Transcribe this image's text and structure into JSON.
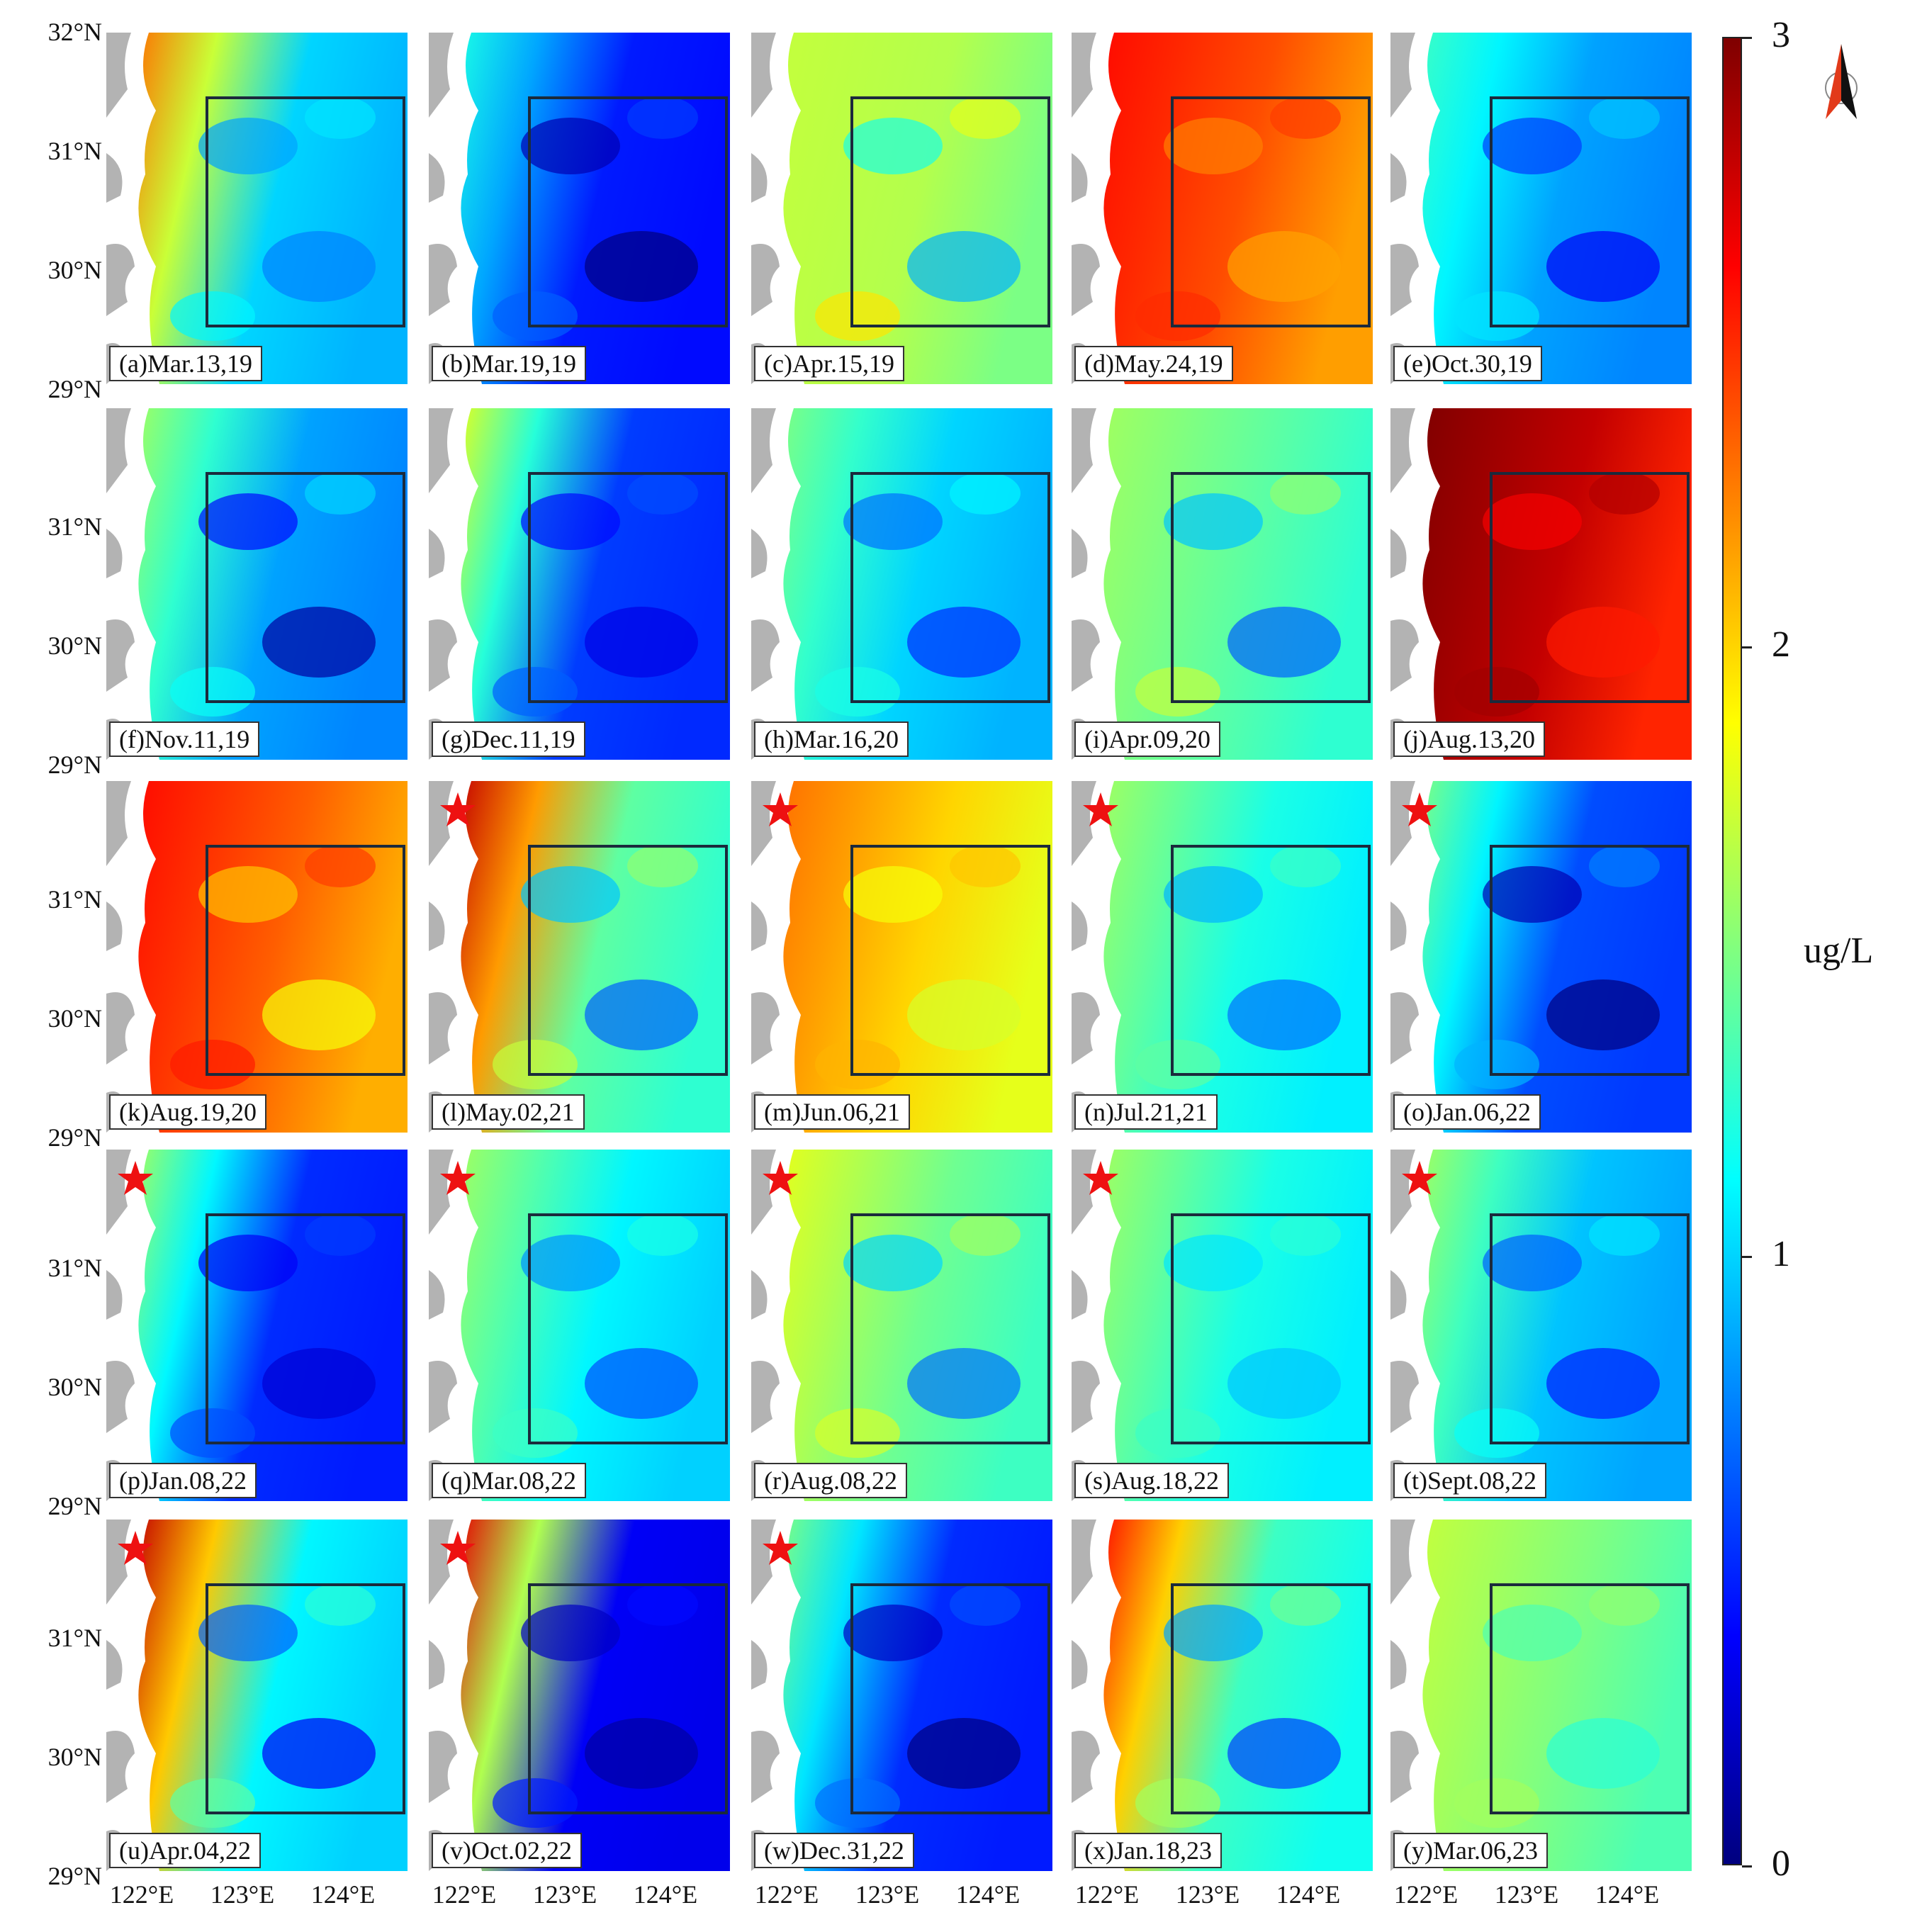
{
  "colors": {
    "land": "#b3b3b3",
    "roi_box": "#1b2a3c",
    "star": "#ee1111",
    "colormap": [
      "#00007f",
      "#0000ff",
      "#0080ff",
      "#00ffff",
      "#80ff80",
      "#ffff00",
      "#ff8000",
      "#ff0000",
      "#7f0000"
    ]
  },
  "axes": {
    "lat_labels": [
      "32°N",
      "31°N",
      "30°N",
      "29°N"
    ],
    "lon_labels": [
      "122°E",
      "123°E",
      "124°E"
    ]
  },
  "colorbar": {
    "unit": "ug/L",
    "ticks": [
      "3",
      "2",
      "1",
      "0"
    ],
    "range": [
      0,
      3
    ]
  },
  "north_arrow": "north-arrow-icon",
  "panels": [
    {
      "label": "(a)Mar.13,19",
      "level": 1.0,
      "coastal": 2.3,
      "star": false
    },
    {
      "label": "(b)Mar.19,19",
      "level": 0.45,
      "coastal": 1.2,
      "star": false
    },
    {
      "label": "(c)Apr.15,19",
      "level": 1.65,
      "coastal": 1.7,
      "star": false
    },
    {
      "label": "(d)May.24,19",
      "level": 2.4,
      "coastal": 2.6,
      "star": false
    },
    {
      "label": "(e)Oct.30,19",
      "level": 0.85,
      "coastal": 1.3,
      "star": false
    },
    {
      "label": "(f)Nov.11,19",
      "level": 0.85,
      "coastal": 1.6,
      "star": false
    },
    {
      "label": "(g)Dec.11,19",
      "level": 0.55,
      "coastal": 1.8,
      "star": false
    },
    {
      "label": "(h)Mar.16,20",
      "level": 1.0,
      "coastal": 1.5,
      "star": false
    },
    {
      "label": "(i)Apr.09,20",
      "level": 1.4,
      "coastal": 1.6,
      "star": false
    },
    {
      "label": "(j)Aug.13,20",
      "level": 2.8,
      "coastal": 3.0,
      "star": false
    },
    {
      "label": "(k)Aug.19,20",
      "level": 2.35,
      "coastal": 2.6,
      "star": false
    },
    {
      "label": "(l)May.02,21",
      "level": 1.4,
      "coastal": 2.8,
      "star": true
    },
    {
      "label": "(m)Jun.06,21",
      "level": 2.0,
      "coastal": 2.3,
      "star": true
    },
    {
      "label": "(n)Jul.21,21",
      "level": 1.2,
      "coastal": 1.6,
      "star": true
    },
    {
      "label": "(o)Jan.06,22",
      "level": 0.6,
      "coastal": 1.5,
      "star": true
    },
    {
      "label": "(p)Jan.08,22",
      "level": 0.5,
      "coastal": 1.6,
      "star": true
    },
    {
      "label": "(q)Mar.08,22",
      "level": 1.1,
      "coastal": 1.6,
      "star": true
    },
    {
      "label": "(r)Aug.08,22",
      "level": 1.45,
      "coastal": 1.8,
      "star": true
    },
    {
      "label": "(s)Aug.18,22",
      "level": 1.2,
      "coastal": 1.6,
      "star": true
    },
    {
      "label": "(t)Sept.08,22",
      "level": 0.95,
      "coastal": 1.6,
      "star": true
    },
    {
      "label": "(u)Apr.04,22",
      "level": 1.1,
      "coastal": 2.8,
      "star": true
    },
    {
      "label": "(v)Oct.02,22",
      "level": 0.35,
      "coastal": 2.7,
      "star": true
    },
    {
      "label": "(w)Dec.31,22",
      "level": 0.5,
      "coastal": 1.5,
      "star": true
    },
    {
      "label": "(x)Jan.18,23",
      "level": 1.3,
      "coastal": 2.6,
      "star": false
    },
    {
      "label": "(y)Mar.06,23",
      "level": 1.5,
      "coastal": 1.7,
      "star": false
    }
  ]
}
